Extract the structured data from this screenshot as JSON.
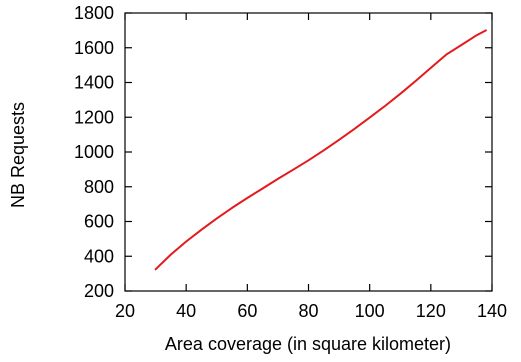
{
  "chart_data": {
    "type": "line",
    "title": "",
    "xlabel": "Area coverage (in square kilometer)",
    "ylabel": "NB Requests",
    "xlim": [
      20,
      140
    ],
    "ylim": [
      200,
      1800
    ],
    "x_ticks": [
      "20",
      "40",
      "60",
      "80",
      "100",
      "120",
      "140"
    ],
    "y_ticks": [
      "200",
      "400",
      "600",
      "800",
      "1000",
      "1200",
      "1400",
      "1600",
      "1800"
    ],
    "grid": false,
    "legend": "none",
    "series": [
      {
        "color": "#e41a1c",
        "x": [
          30,
          35,
          40,
          45,
          50,
          55,
          60,
          65,
          70,
          75,
          80,
          85,
          90,
          95,
          100,
          105,
          110,
          115,
          120,
          125,
          130,
          135,
          138
        ],
        "y": [
          325,
          410,
          485,
          553,
          618,
          678,
          735,
          790,
          845,
          898,
          952,
          1010,
          1070,
          1133,
          1198,
          1265,
          1335,
          1408,
          1484,
          1560,
          1616,
          1672,
          1700
        ]
      }
    ]
  }
}
